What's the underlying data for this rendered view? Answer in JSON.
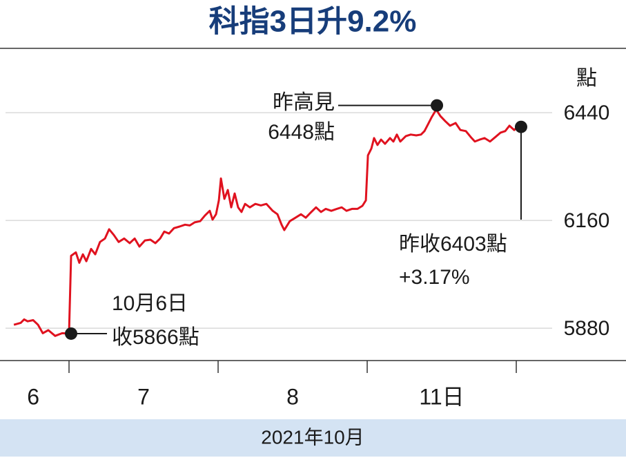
{
  "chart_data": {
    "type": "line",
    "title": "科指3日升9.2%",
    "y_unit": "點",
    "xlabel": "2021年10月",
    "xlim": [
      0.537,
      4.736
    ],
    "xticks": [
      1,
      2,
      3,
      4
    ],
    "x_labels": [
      {
        "value": 0.76,
        "label": "6"
      },
      {
        "value": 1.5,
        "label": "7"
      },
      {
        "value": 2.5,
        "label": "8"
      },
      {
        "value": 3.5,
        "label": "11日"
      }
    ],
    "ylim": [
      5796,
      6607
    ],
    "yticks": [
      5880,
      6160,
      6440
    ],
    "grid": true,
    "series": [
      {
        "color": "#e0121f",
        "x": [
          0.63,
          0.676,
          0.699,
          0.722,
          0.759,
          0.792,
          0.824,
          0.861,
          0.907,
          0.954,
          1.0,
          1.014,
          1.046,
          1.069,
          1.093,
          1.116,
          1.148,
          1.176,
          1.208,
          1.241,
          1.269,
          1.301,
          1.333,
          1.37,
          1.407,
          1.44,
          1.472,
          1.509,
          1.546,
          1.579,
          1.611,
          1.639,
          1.671,
          1.704,
          1.741,
          1.778,
          1.81,
          1.843,
          1.88,
          1.912,
          1.944,
          1.963,
          1.986,
          2.005,
          2.019,
          2.042,
          2.065,
          2.088,
          2.111,
          2.134,
          2.157,
          2.181,
          2.213,
          2.25,
          2.287,
          2.324,
          2.366,
          2.398,
          2.426,
          2.444,
          2.481,
          2.519,
          2.556,
          2.588,
          2.62,
          2.657,
          2.69,
          2.722,
          2.759,
          2.796,
          2.829,
          2.861,
          2.898,
          2.935,
          2.968,
          2.991,
          3.005,
          3.028,
          3.046,
          3.069,
          3.093,
          3.12,
          3.153,
          3.176,
          3.199,
          3.222,
          3.259,
          3.292,
          3.329,
          3.361,
          3.384,
          3.407,
          3.431,
          3.463,
          3.491,
          3.523,
          3.556,
          3.593,
          3.625,
          3.662,
          3.694,
          3.722,
          3.755,
          3.787,
          3.824,
          3.861,
          3.894,
          3.926,
          3.954,
          3.986,
          4.009
        ],
        "values": [
          5889,
          5894,
          5903,
          5898,
          5901,
          5889,
          5867,
          5875,
          5860,
          5867,
          5866,
          6068,
          6077,
          6050,
          6072,
          6054,
          6086,
          6072,
          6104,
          6113,
          6137,
          6122,
          6104,
          6113,
          6101,
          6113,
          6092,
          6108,
          6110,
          6101,
          6113,
          6131,
          6126,
          6140,
          6144,
          6149,
          6147,
          6155,
          6158,
          6173,
          6185,
          6162,
          6176,
          6212,
          6269,
          6216,
          6239,
          6194,
          6230,
          6194,
          6182,
          6203,
          6194,
          6203,
          6199,
          6203,
          6185,
          6176,
          6149,
          6135,
          6158,
          6167,
          6176,
          6167,
          6180,
          6194,
          6182,
          6190,
          6185,
          6190,
          6194,
          6185,
          6190,
          6190,
          6198,
          6212,
          6329,
          6347,
          6374,
          6356,
          6370,
          6359,
          6374,
          6365,
          6383,
          6365,
          6379,
          6383,
          6381,
          6383,
          6392,
          6409,
          6427,
          6448,
          6431,
          6418,
          6406,
          6413,
          6395,
          6392,
          6377,
          6365,
          6370,
          6374,
          6365,
          6377,
          6388,
          6392,
          6406,
          6395,
          6403
        ]
      }
    ],
    "annotations": [
      {
        "lines": [
          "10月6日",
          "收5866點"
        ]
      },
      {
        "lines": [
          "昨高見",
          "6448點"
        ]
      },
      {
        "lines": [
          "昨收6403點",
          "+3.17%"
        ]
      }
    ]
  }
}
